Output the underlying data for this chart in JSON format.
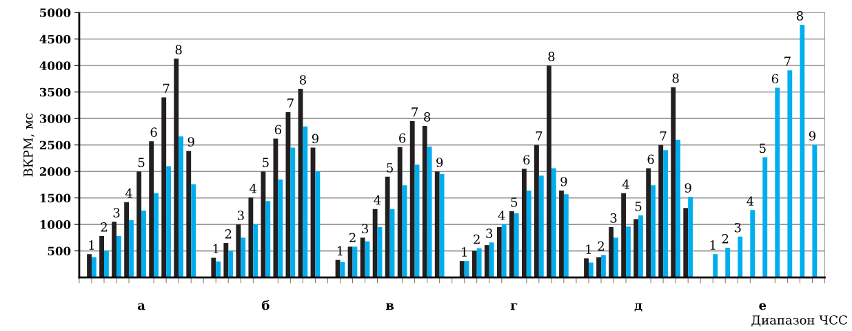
{
  "chart_data": {
    "type": "bar",
    "ylabel": "ВКРМ, мс",
    "xlabel": "Диапазон ЧСС",
    "categories": [
      "а",
      "б",
      "в",
      "г",
      "д",
      "е"
    ],
    "series": [
      {
        "name": "1",
        "color": "#231f20",
        "values": [
          440,
          370,
          330,
          310,
          360,
          null
        ]
      },
      {
        "color": "#00aeef",
        "values": [
          380,
          300,
          290,
          310,
          280,
          440
        ]
      },
      {
        "name": "2",
        "color": "#231f20",
        "values": [
          780,
          650,
          580,
          500,
          380,
          null
        ]
      },
      {
        "color": "#00aeef",
        "values": [
          500,
          500,
          580,
          550,
          420,
          560
        ]
      },
      {
        "name": "3",
        "color": "#231f20",
        "values": [
          1050,
          1000,
          750,
          610,
          950,
          null
        ]
      },
      {
        "color": "#00aeef",
        "values": [
          780,
          750,
          680,
          660,
          750,
          770
        ]
      },
      {
        "name": "4",
        "color": "#231f20",
        "values": [
          1420,
          1510,
          1290,
          950,
          1590,
          null
        ]
      },
      {
        "color": "#00aeef",
        "values": [
          1080,
          1000,
          950,
          1000,
          960,
          1270
        ]
      },
      {
        "name": "5",
        "color": "#231f20",
        "values": [
          2000,
          2000,
          1900,
          1250,
          1100,
          null
        ]
      },
      {
        "color": "#00aeef",
        "values": [
          1260,
          1440,
          1290,
          1210,
          1170,
          2270
        ]
      },
      {
        "name": "6",
        "color": "#231f20",
        "values": [
          2570,
          2620,
          2460,
          2050,
          2060,
          null
        ]
      },
      {
        "color": "#00aeef",
        "values": [
          1590,
          1850,
          1740,
          1640,
          1740,
          3580
        ]
      },
      {
        "name": "7",
        "color": "#231f20",
        "values": [
          3400,
          3120,
          2950,
          2500,
          2500,
          null
        ]
      },
      {
        "color": "#00aeef",
        "values": [
          2100,
          2450,
          2130,
          1920,
          2400,
          3910
        ]
      },
      {
        "name": "8",
        "color": "#231f20",
        "values": [
          4130,
          3560,
          2860,
          4000,
          3590,
          null
        ]
      },
      {
        "color": "#00aeef",
        "values": [
          2660,
          2850,
          2470,
          2060,
          2600,
          4770
        ]
      },
      {
        "name": "9",
        "color": "#231f20",
        "values": [
          2390,
          2450,
          2000,
          1640,
          1310,
          null
        ]
      },
      {
        "color": "#00aeef",
        "values": [
          1760,
          2000,
          1950,
          1570,
          1520,
          2500
        ]
      }
    ],
    "ylim": [
      0,
      5000
    ],
    "yticks": [
      500,
      1000,
      1500,
      2000,
      2500,
      3000,
      3500,
      4000,
      4500,
      5000
    ],
    "grid": "y",
    "legend": false
  }
}
